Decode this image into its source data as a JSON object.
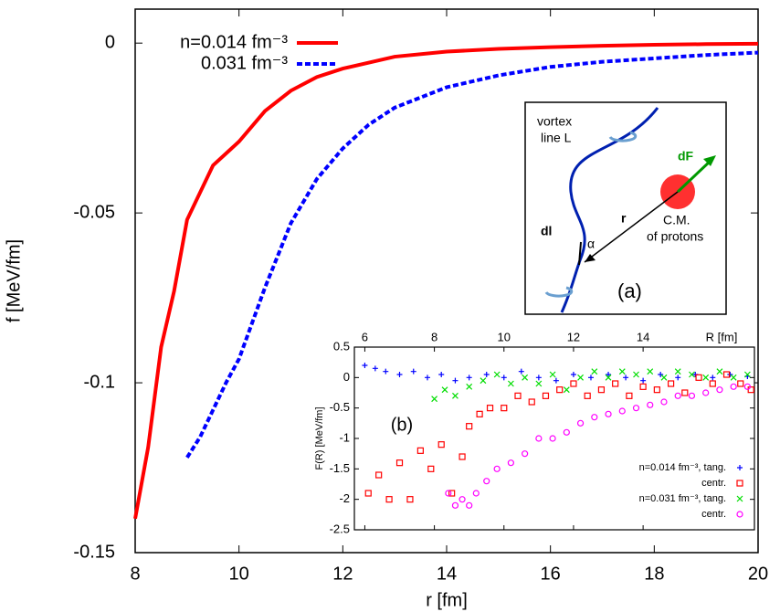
{
  "chart_data": [
    {
      "type": "line",
      "xlabel": "r [fm]",
      "ylabel": "f [MeV/fm]",
      "xlim": [
        8,
        20
      ],
      "xticks": [
        8,
        10,
        12,
        14,
        16,
        18,
        20
      ],
      "ylim": [
        -0.15,
        0.01
      ],
      "yticks": [
        0,
        -0.05,
        -0.1,
        -0.15
      ],
      "legend": "top-left",
      "series": [
        {
          "name": "n=0.014 fm⁻³",
          "color": "#ff0000",
          "style": "solid",
          "x": [
            8,
            8.25,
            8.5,
            8.75,
            9,
            9.5,
            10,
            10.5,
            11,
            11.5,
            12,
            13,
            14,
            15,
            16,
            17,
            18,
            19,
            20
          ],
          "values": [
            -0.14,
            -0.119,
            -0.0895,
            -0.073,
            -0.052,
            -0.036,
            -0.029,
            -0.02,
            -0.014,
            -0.01,
            -0.0075,
            -0.004,
            -0.0025,
            -0.0017,
            -0.0012,
            -0.0008,
            -0.0005,
            -0.0003,
            -0.0002
          ]
        },
        {
          "name": "0.031 fm⁻³",
          "color": "#0000ff",
          "style": "dashed",
          "x": [
            9,
            9.25,
            9.5,
            9.75,
            10,
            10.5,
            11,
            11.5,
            12,
            12.5,
            13,
            14,
            15,
            16,
            17,
            18,
            19,
            20
          ],
          "values": [
            -0.122,
            -0.116,
            -0.108,
            -0.1,
            -0.093,
            -0.072,
            -0.053,
            -0.04,
            -0.031,
            -0.024,
            -0.019,
            -0.013,
            -0.0095,
            -0.007,
            -0.0055,
            -0.0045,
            -0.0035,
            -0.0028
          ]
        }
      ]
    },
    {
      "type": "scatter",
      "annotation": "(b)",
      "xlabel": "R [fm]",
      "ylabel": "F(R) [MeV/fm]",
      "xlim": [
        5.7,
        17.2
      ],
      "xticks": [
        6,
        8,
        10,
        12,
        14
      ],
      "ylim": [
        -2.5,
        0.5
      ],
      "yticks": [
        0.5,
        0,
        -0.5,
        -1,
        -1.5,
        -2,
        -2.5
      ],
      "legend": "bottom-right",
      "series": [
        {
          "name": "n=0.014 fm⁻³, tang.",
          "color": "#0000ff",
          "marker": "plus",
          "x": [
            6,
            6.3,
            6.6,
            7,
            7.4,
            7.8,
            8.2,
            8.6,
            9,
            9.5,
            10,
            10.5,
            11,
            11.5,
            12,
            12.5,
            13,
            13.5,
            14,
            14.5,
            15,
            15.5,
            16,
            16.5,
            17
          ],
          "values": [
            0.2,
            0.15,
            0.1,
            0.05,
            0.1,
            0,
            0.05,
            -0.05,
            0,
            0.05,
            0,
            0.1,
            0,
            -0.05,
            0.05,
            0,
            0.05,
            0,
            -0.05,
            0.05,
            0,
            0.05,
            0,
            0.05,
            0.02
          ]
        },
        {
          "name": "centr.",
          "color": "#ff0000",
          "marker": "square",
          "x": [
            6.1,
            6.4,
            6.7,
            7,
            7.3,
            7.6,
            7.9,
            8.2,
            8.5,
            8.8,
            9,
            9.3,
            9.6,
            10,
            10.4,
            10.8,
            11.2,
            11.6,
            12,
            12.4,
            12.8,
            13.2,
            13.6,
            14,
            14.4,
            14.8,
            15.2,
            15.6,
            16,
            16.4,
            16.8,
            17.1
          ],
          "values": [
            -1.9,
            -1.6,
            -2,
            -1.4,
            -2,
            -1.2,
            -1.5,
            -1.1,
            -1.9,
            -1.3,
            -0.8,
            -0.6,
            -0.5,
            -0.5,
            -0.3,
            -0.4,
            -0.3,
            -0.2,
            -0.1,
            -0.3,
            -0.2,
            -0.1,
            -0.3,
            -0.15,
            -0.2,
            -0.1,
            -0.25,
            0,
            -0.1,
            0.05,
            -0.1,
            -0.2
          ]
        },
        {
          "name": "n=0.031 fm⁻³, tang.",
          "color": "#00dd00",
          "marker": "cross",
          "x": [
            8,
            8.3,
            8.6,
            9,
            9.4,
            9.8,
            10.2,
            10.6,
            11,
            11.4,
            11.8,
            12.2,
            12.6,
            13,
            13.4,
            13.8,
            14.2,
            14.6,
            15,
            15.4,
            15.8,
            16.2,
            16.6,
            17
          ],
          "values": [
            -0.35,
            -0.2,
            -0.3,
            -0.15,
            -0.05,
            0.05,
            -0.1,
            0,
            -0.1,
            0.05,
            -0.2,
            0,
            0.1,
            0,
            0.1,
            0.05,
            0.1,
            0,
            0.1,
            0.05,
            0,
            0.1,
            0,
            0.05
          ]
        },
        {
          "name": "centr.",
          "color": "#ff00ff",
          "marker": "circle",
          "x": [
            8.4,
            8.6,
            8.8,
            9,
            9.2,
            9.5,
            9.8,
            10.2,
            10.6,
            11,
            11.4,
            11.8,
            12.2,
            12.6,
            13,
            13.4,
            13.8,
            14.2,
            14.6,
            15,
            15.4,
            15.8,
            16.2,
            16.6,
            17
          ],
          "values": [
            -1.9,
            -2.1,
            -2,
            -2.1,
            -1.9,
            -1.7,
            -1.5,
            -1.4,
            -1.25,
            -1,
            -1,
            -0.9,
            -0.75,
            -0.65,
            -0.6,
            -0.55,
            -0.5,
            -0.45,
            -0.4,
            -0.3,
            -0.3,
            -0.25,
            -0.2,
            -0.15,
            -0.15
          ]
        }
      ]
    }
  ],
  "diagram": {
    "vortex": "vortex",
    "line": "line L",
    "force": "dF",
    "radius": "r",
    "cm": "C.M.",
    "protons": "of protons",
    "element": "dl",
    "angle": "α",
    "label": "(a)"
  }
}
